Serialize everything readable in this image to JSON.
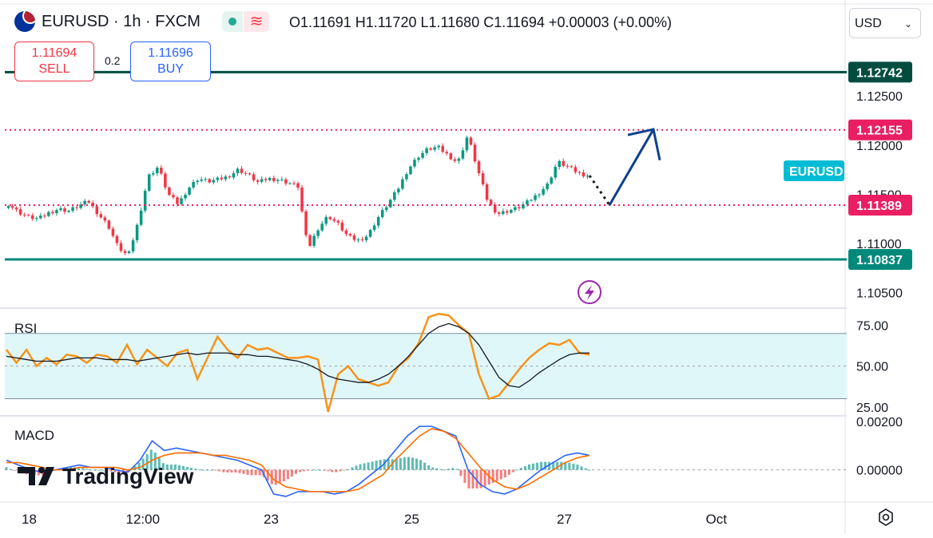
{
  "header": {
    "symbol": "EURUSD · 1h · FXCM",
    "ohlc": "O1.11691  H1.11720  L1.11680  C1.11694  +0.00003 (+0.00%)",
    "sell_price": "1.11694",
    "sell_label": "SELL",
    "spread": "0.2",
    "buy_price": "1.11696",
    "buy_label": "BUY",
    "currency": "USD",
    "currency_icon": "chevron-down-icon",
    "flag_icon": "eurusd-flag-icon",
    "status_icon": "market-open-dot-icon",
    "wave_icon": "wave-icon"
  },
  "watermark": "TradingView",
  "colors": {
    "up": "#089981",
    "down": "#f23645",
    "resistance": "#004d40",
    "support": "#00897b",
    "dotted": "#e91e63",
    "arrow": "#0d3f8f",
    "rsi": "#f7931a",
    "rsi_ma": "#131722",
    "macd": "#2962ff",
    "signal": "#ff6d00",
    "eurusd_tag": "#00bcd4"
  },
  "chart_data": {
    "type": "candlestick",
    "symbol": "EURUSD",
    "interval": "1h",
    "x_ticks": [
      "18",
      "12:00",
      "23",
      "25",
      "27",
      "Oct"
    ],
    "price_axis_ticks": [
      "1.12500",
      "1.12000",
      "1.11500",
      "1.11000",
      "1.10500"
    ],
    "levels": [
      {
        "label": "1.12742",
        "value": 1.12742,
        "style": "solid"
      },
      {
        "label": "1.12155",
        "value": 1.12155,
        "style": "dotted"
      },
      {
        "label": "1.11389",
        "value": 1.11389,
        "style": "dotted"
      },
      {
        "label": "1.10837",
        "value": 1.10837,
        "style": "solid"
      }
    ],
    "last_tag": "EURUSD",
    "projection": [
      1.1169,
      1.1139,
      1.1216,
      1.1209
    ],
    "close_path": [
      1.114,
      1.1132,
      1.1127,
      1.1125,
      1.1131,
      1.1135,
      1.1133,
      1.1138,
      1.1143,
      1.113,
      1.1118,
      1.1096,
      1.1087,
      1.1122,
      1.1168,
      1.1178,
      1.115,
      1.114,
      1.1156,
      1.1166,
      1.1163,
      1.1165,
      1.1168,
      1.1175,
      1.117,
      1.1162,
      1.1166,
      1.1165,
      1.1162,
      1.1158,
      1.1094,
      1.1115,
      1.1128,
      1.112,
      1.1107,
      1.1103,
      1.1108,
      1.1126,
      1.114,
      1.1155,
      1.1175,
      1.1188,
      1.1196,
      1.1198,
      1.119,
      1.1182,
      1.121,
      1.1175,
      1.1143,
      1.113,
      1.1133,
      1.1136,
      1.1142,
      1.115,
      1.116,
      1.1183,
      1.1178,
      1.1172,
      1.1169
    ],
    "price_range": [
      1.1035,
      1.1307
    ],
    "rsi": {
      "label": "RSI",
      "ticks": [
        "75.00",
        "50.00",
        "25.00"
      ],
      "band": [
        30,
        70
      ],
      "ylim": [
        20,
        85
      ],
      "values": [
        60,
        52,
        60,
        50,
        55,
        51,
        57,
        56,
        52,
        57,
        56,
        52,
        63,
        51,
        60,
        55,
        50,
        58,
        60,
        42,
        55,
        68,
        60,
        55,
        63,
        60,
        61,
        58,
        55,
        55,
        56,
        54,
        22,
        45,
        50,
        42,
        40,
        38,
        40,
        50,
        55,
        64,
        80,
        82,
        81,
        75,
        70,
        45,
        30,
        32,
        40,
        48,
        55,
        60,
        64,
        63,
        66,
        58,
        57
      ],
      "ma": [
        56,
        55,
        54,
        53,
        53,
        53,
        54,
        55,
        55,
        55,
        54,
        54,
        54,
        53,
        54,
        55,
        56,
        57,
        58,
        57,
        58,
        58,
        58,
        57,
        57,
        56,
        56,
        55,
        54,
        53,
        51,
        48,
        44,
        42,
        41,
        40,
        40,
        42,
        45,
        50,
        56,
        63,
        70,
        74,
        76,
        74,
        70,
        63,
        53,
        43,
        38,
        37,
        41,
        46,
        50,
        54,
        57,
        58,
        58
      ]
    },
    "macd": {
      "label": "MACD",
      "ticks": [
        "0.00200",
        "0.00000"
      ],
      "ylim": [
        -0.0013,
        0.0022
      ],
      "macd": [
        0.0004,
        0.0002,
        0.0,
        -0.0001,
        0.0,
        0.0001,
        0.0002,
        0.0001,
        0.0001,
        0.0,
        -0.0001,
        0.0004,
        0.0012,
        0.0008,
        0.0009,
        0.0008,
        0.0007,
        0.0006,
        0.0005,
        0.0004,
        0.0002,
        0.0,
        -0.001,
        -0.0011,
        -0.0009,
        -0.0009,
        -0.0009,
        -0.001,
        -0.0009,
        -0.0006,
        -0.0002,
        0.0002,
        0.0008,
        0.0014,
        0.0018,
        0.0018,
        0.0016,
        0.0014,
        0.0,
        -0.0006,
        -0.0009,
        -0.001,
        -0.0008,
        -0.0004,
        0.0,
        0.0003,
        0.0006,
        0.0007,
        0.0006
      ],
      "signal": [
        0.0003,
        0.0003,
        0.0002,
        0.0001,
        0.0,
        0.0,
        0.0001,
        0.0001,
        0.0001,
        0.0001,
        0.0,
        0.0001,
        0.0004,
        0.0006,
        0.0007,
        0.0007,
        0.0007,
        0.0006,
        0.0006,
        0.0005,
        0.0004,
        0.0002,
        -0.0004,
        -0.0007,
        -0.0008,
        -0.0009,
        -0.0009,
        -0.0009,
        -0.0009,
        -0.0008,
        -0.0005,
        -0.0002,
        0.0004,
        0.0009,
        0.0014,
        0.0017,
        0.0016,
        0.0013,
        0.0007,
        0.0001,
        -0.0004,
        -0.0007,
        -0.0008,
        -0.0006,
        -0.0003,
        0.0,
        0.0003,
        0.0005,
        0.0006
      ]
    }
  }
}
